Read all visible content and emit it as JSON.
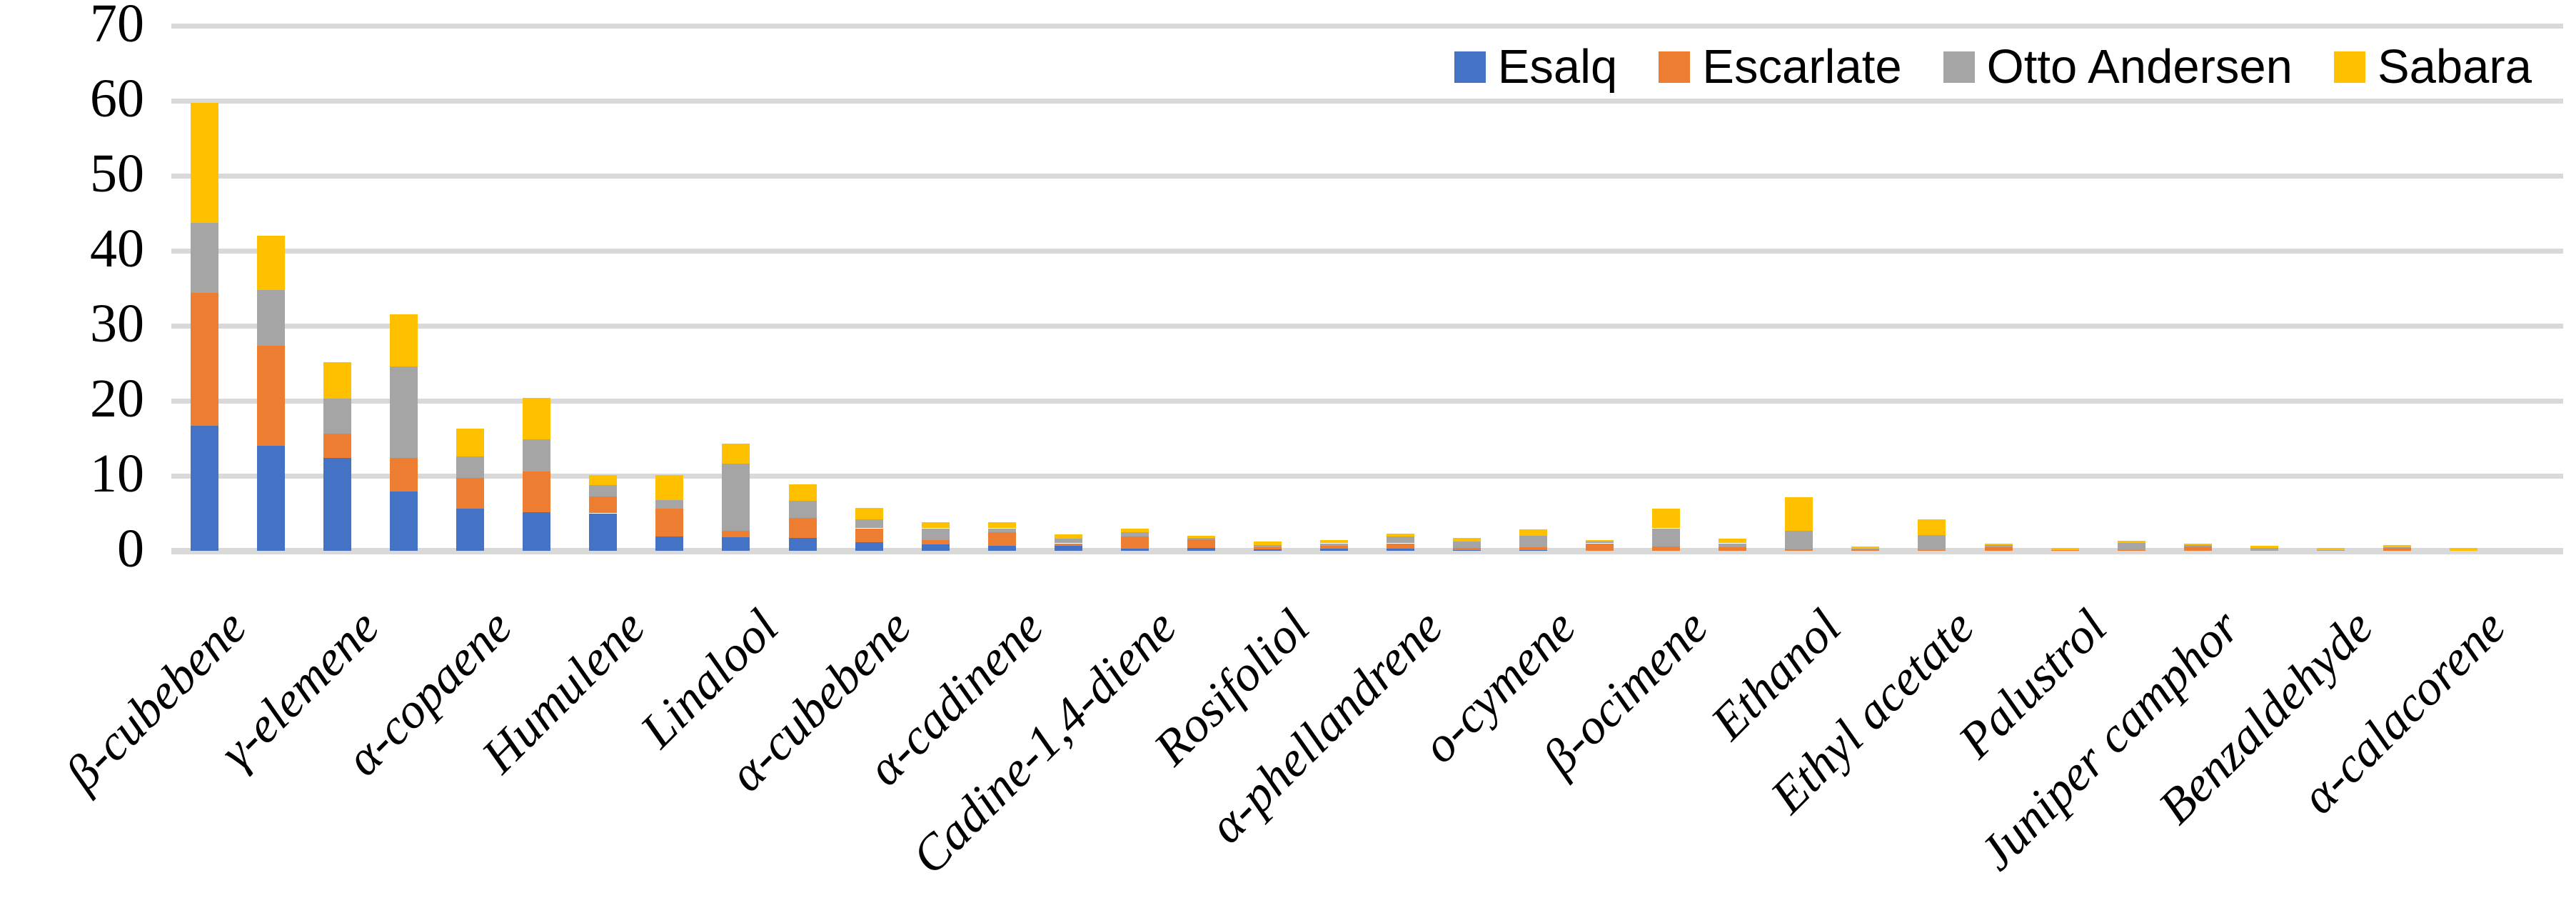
{
  "figure": {
    "background": "#FFFFFF",
    "gridline_color": "#D9D9D9",
    "axis_text_color": "#000000"
  },
  "legend": {
    "position": "top-right",
    "items": [
      {
        "label": "Esalq",
        "color": "#4472C4"
      },
      {
        "label": "Escarlate",
        "color": "#ED7D31"
      },
      {
        "label": "Otto Andersen",
        "color": "#A5A5A5"
      },
      {
        "label": "Sabara",
        "color": "#FFC000"
      }
    ]
  },
  "chart_data": {
    "type": "bar",
    "stacked": true,
    "title": "",
    "xlabel": "",
    "ylabel": "",
    "ylim": [
      0,
      70
    ],
    "yticks": [
      0,
      10,
      20,
      30,
      40,
      50,
      60,
      70
    ],
    "grid": true,
    "legend_position": "top-right",
    "category_label_rotation_deg": 45,
    "category_label_interval": 2,
    "series_names": [
      "Esalq",
      "Escarlate",
      "Otto Andersen",
      "Sabara"
    ],
    "series_colors": [
      "#4472C4",
      "#ED7D31",
      "#A5A5A5",
      "#FFC000"
    ],
    "bars": [
      {
        "label": "β-cubebene",
        "values": [
          16.7,
          17.7,
          9.3,
          16.0
        ]
      },
      {
        "label": "",
        "values": [
          14.0,
          13.3,
          7.5,
          7.2
        ]
      },
      {
        "label": "γ-elemene",
        "values": [
          12.4,
          3.2,
          4.7,
          4.8
        ]
      },
      {
        "label": "",
        "values": [
          7.9,
          4.5,
          12.2,
          6.9
        ]
      },
      {
        "label": "α-copaene",
        "values": [
          5.6,
          4.1,
          2.9,
          3.7
        ]
      },
      {
        "label": "",
        "values": [
          5.1,
          5.5,
          4.3,
          5.5
        ]
      },
      {
        "label": "Humulene",
        "values": [
          5.0,
          2.2,
          1.6,
          1.3
        ]
      },
      {
        "label": "",
        "values": [
          1.9,
          3.7,
          1.2,
          3.3
        ]
      },
      {
        "label": "Linalool",
        "values": [
          1.8,
          0.9,
          8.9,
          2.7
        ]
      },
      {
        "label": "",
        "values": [
          1.7,
          2.7,
          2.3,
          2.2
        ]
      },
      {
        "label": "α-cubebene",
        "values": [
          1.1,
          1.9,
          1.2,
          1.5
        ]
      },
      {
        "label": "",
        "values": [
          0.9,
          0.5,
          1.6,
          0.8
        ]
      },
      {
        "label": "α-cadinene",
        "values": [
          0.7,
          1.8,
          0.5,
          0.8
        ]
      },
      {
        "label": "",
        "values": [
          0.7,
          0.3,
          0.6,
          0.6
        ]
      },
      {
        "label": "Cadine-1,4-diene",
        "values": [
          0.3,
          1.6,
          0.6,
          0.5
        ]
      },
      {
        "label": "",
        "values": [
          0.4,
          1.1,
          0.25,
          0.25
        ]
      },
      {
        "label": "Rosifoliol",
        "values": [
          0.2,
          0.3,
          0.3,
          0.4
        ]
      },
      {
        "label": "",
        "values": [
          0.3,
          0.4,
          0.3,
          0.4
        ]
      },
      {
        "label": "α-phellandrene",
        "values": [
          0.3,
          0.7,
          0.9,
          0.4
        ]
      },
      {
        "label": "",
        "values": [
          0.05,
          0.35,
          0.8,
          0.5
        ]
      },
      {
        "label": "o-cymene",
        "values": [
          0.1,
          0.4,
          1.5,
          0.9
        ]
      },
      {
        "label": "",
        "values": [
          0.0,
          1.0,
          0.2,
          0.2
        ]
      },
      {
        "label": "β-ocimene",
        "values": [
          0.0,
          0.6,
          2.4,
          2.6
        ]
      },
      {
        "label": "",
        "values": [
          0.0,
          0.5,
          0.5,
          0.6
        ]
      },
      {
        "label": "Ethanol",
        "values": [
          0.0,
          0.2,
          2.5,
          4.4
        ]
      },
      {
        "label": "",
        "values": [
          0.0,
          0.2,
          0.1,
          0.3
        ]
      },
      {
        "label": "Ethyl acetate",
        "values": [
          0.0,
          0.1,
          2.0,
          2.1
        ]
      },
      {
        "label": "",
        "values": [
          0.0,
          0.5,
          0.25,
          0.25
        ]
      },
      {
        "label": "Palustrol",
        "values": [
          0.0,
          0.1,
          0.0,
          0.3
        ]
      },
      {
        "label": "",
        "values": [
          0.0,
          0.05,
          1.0,
          0.25
        ]
      },
      {
        "label": "Juniper camphor",
        "values": [
          0.0,
          0.55,
          0.2,
          0.25
        ]
      },
      {
        "label": "",
        "values": [
          0.0,
          0.0,
          0.4,
          0.25
        ]
      },
      {
        "label": "Benzaldehyde",
        "values": [
          0.0,
          0.0,
          0.1,
          0.25
        ]
      },
      {
        "label": "",
        "values": [
          0.0,
          0.35,
          0.15,
          0.3
        ]
      },
      {
        "label": "α-calacorene",
        "values": [
          0.0,
          0.0,
          0.0,
          0.4
        ]
      }
    ]
  }
}
